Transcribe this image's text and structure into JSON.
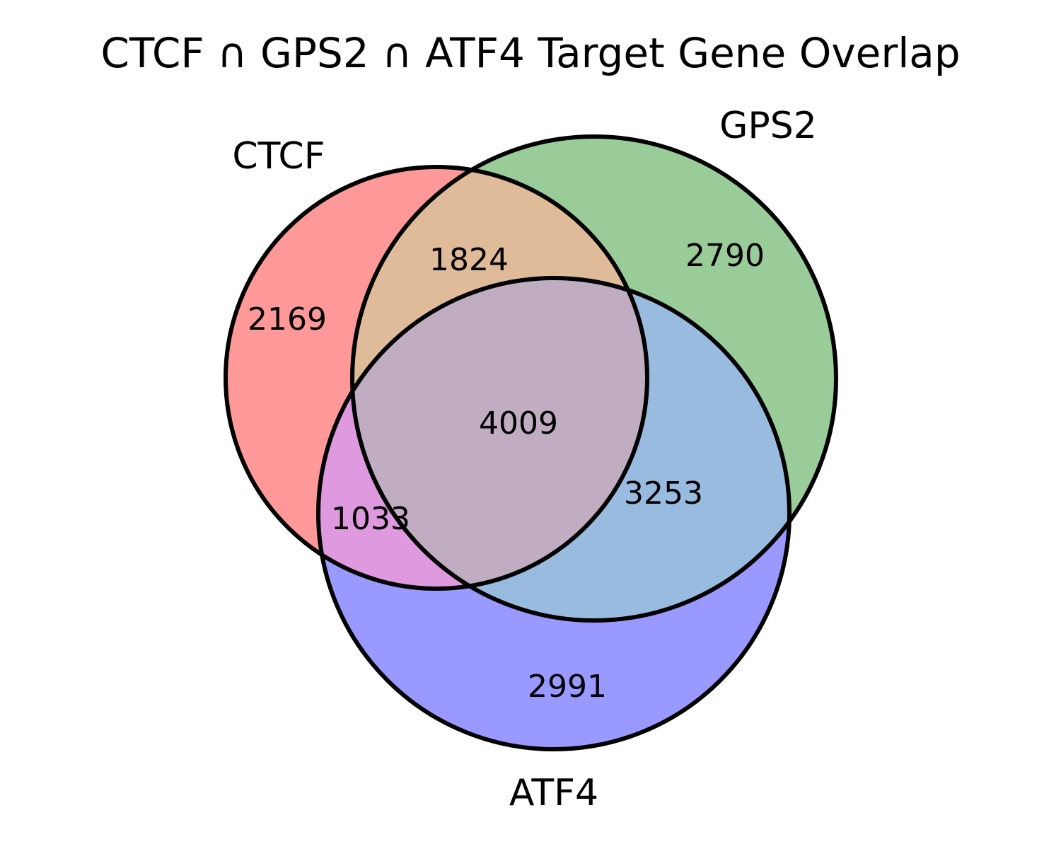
{
  "title": "CTCF ∩ GPS2 ∩ ATF4 Target Gene Overlap",
  "sets": {
    "a": {
      "label": "CTCF",
      "color": "#ff9999"
    },
    "b": {
      "label": "GPS2",
      "color": "#99cc99"
    },
    "c": {
      "label": "ATF4",
      "color": "#9999ff"
    }
  },
  "regions": {
    "a_only": {
      "count": "2169",
      "color": "#ff9999"
    },
    "b_only": {
      "count": "2790",
      "color": "#99cc99"
    },
    "c_only": {
      "count": "2991",
      "color": "#9999ff"
    },
    "ab": {
      "count": "1824",
      "color": "#e0bb99"
    },
    "ac": {
      "count": "1033",
      "color": "#df99df"
    },
    "bc": {
      "count": "3253",
      "color": "#99bbdf"
    },
    "abc": {
      "count": "4009",
      "color": "#c0adc2"
    }
  },
  "outline_color": "#000000"
}
